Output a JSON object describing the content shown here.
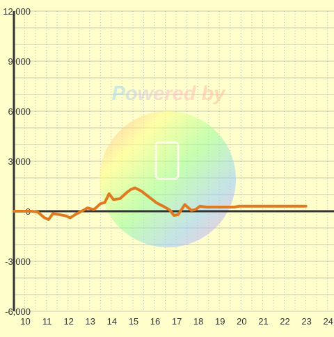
{
  "chart_data": {
    "type": "line",
    "title": "",
    "xlabel": "",
    "ylabel": "",
    "xlim": [
      9.5,
      24.3
    ],
    "ylim": [
      -6000,
      12000
    ],
    "x_ticks": [
      10,
      11,
      12,
      13,
      14,
      15,
      16,
      17,
      18,
      19,
      20,
      21,
      22,
      23,
      24
    ],
    "x_tick_labels": [
      "10",
      "11",
      "12",
      "13",
      "14",
      "15",
      "16",
      "17",
      "18",
      "19",
      "20",
      "21",
      "22",
      "23",
      "24"
    ],
    "y_ticks": [
      -6000,
      -3000,
      0,
      3000,
      6000,
      9000,
      12000
    ],
    "y_tick_labels": [
      "-6,000",
      "-3,000",
      "0",
      "3,000",
      "6,000",
      "9,000",
      "12,000"
    ],
    "y_grid_step": 1000,
    "x_grid_step": 0.5,
    "grid": true,
    "line_color": "#e07a20",
    "background_color": "#ffffcc",
    "watermark_text": "Powered by",
    "series": [
      {
        "name": "",
        "x": [
          9.5,
          10.0,
          10.3,
          10.6,
          10.9,
          11.1,
          11.3,
          11.6,
          11.9,
          12.1,
          12.4,
          12.7,
          12.9,
          13.2,
          13.5,
          13.7,
          13.9,
          14.1,
          14.4,
          14.7,
          14.9,
          15.1,
          15.4,
          15.7,
          15.9,
          16.1,
          16.4,
          16.7,
          16.9,
          17.1,
          17.4,
          17.7,
          17.9,
          18.1,
          18.4,
          18.9,
          19.4,
          19.7,
          19.9,
          20.4,
          20.9,
          21.4,
          21.9,
          22.4,
          22.9,
          23.0
        ],
        "values": [
          0,
          0,
          0,
          -50,
          -380,
          -500,
          -150,
          -200,
          -280,
          -400,
          -150,
          50,
          200,
          100,
          450,
          520,
          1050,
          700,
          750,
          1100,
          1300,
          1400,
          1200,
          900,
          700,
          500,
          300,
          80,
          -250,
          -200,
          400,
          50,
          100,
          300,
          250,
          250,
          250,
          250,
          300,
          300,
          300,
          300,
          300,
          300,
          300,
          300
        ]
      }
    ]
  }
}
